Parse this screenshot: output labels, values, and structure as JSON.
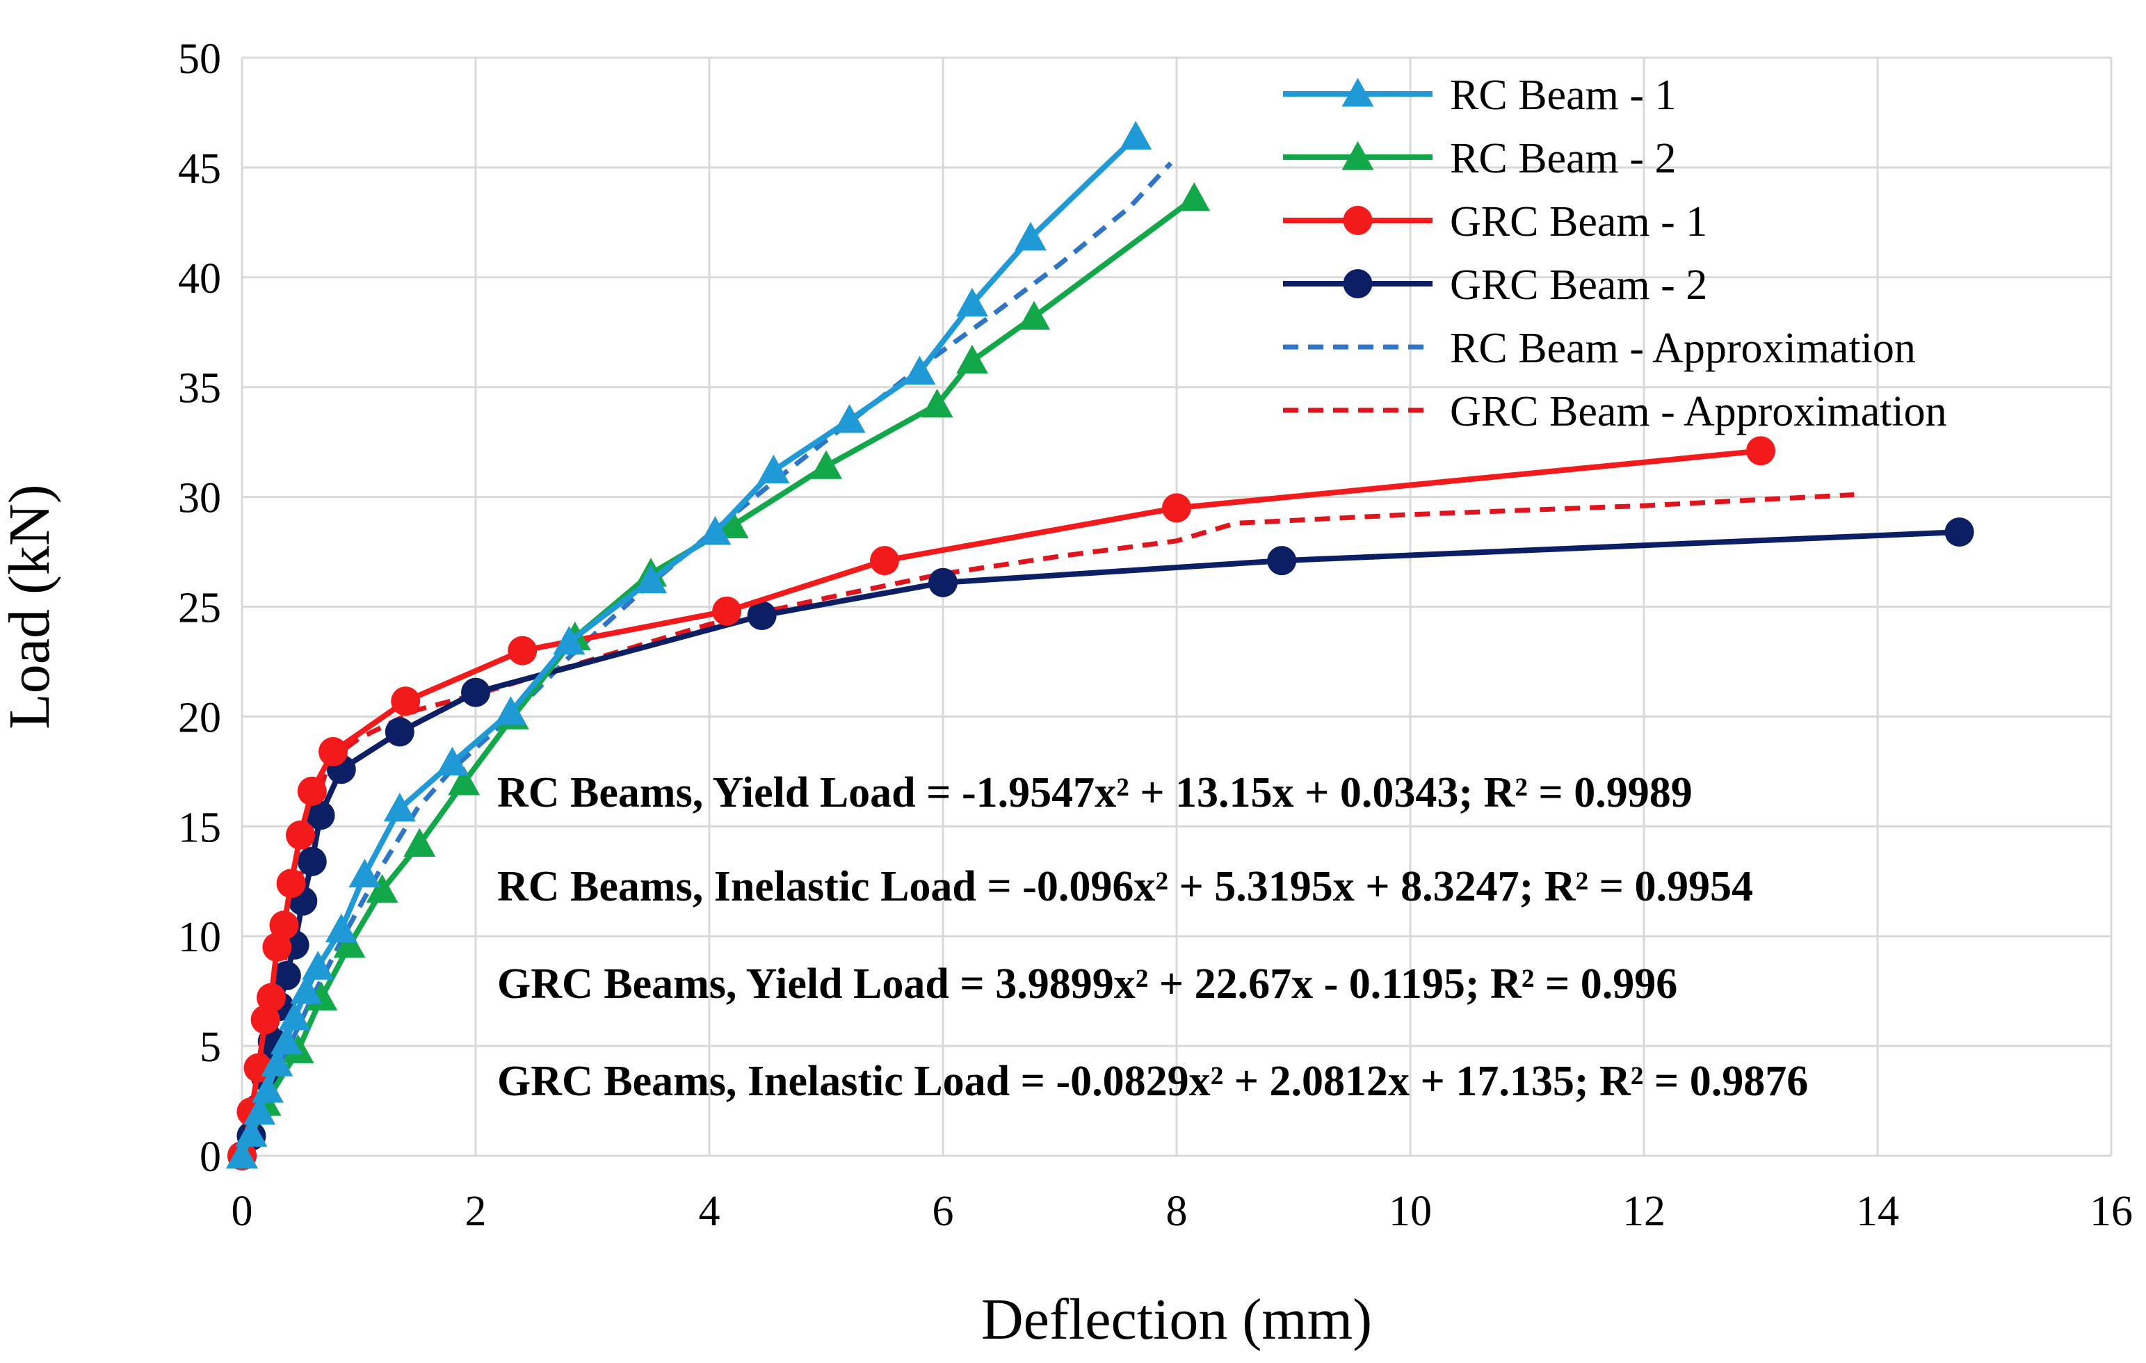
{
  "chart_data": {
    "type": "line",
    "title": "",
    "xlabel": "Deflection (mm)",
    "ylabel": "Load (kN)",
    "xlim": [
      0,
      16
    ],
    "ylim": [
      0,
      50
    ],
    "xticks": [
      0,
      2,
      4,
      6,
      8,
      10,
      12,
      14,
      16
    ],
    "yticks": [
      0,
      5,
      10,
      15,
      20,
      25,
      30,
      35,
      40,
      45,
      50
    ],
    "grid": true,
    "legend_position": "top-right",
    "series": [
      {
        "name": "RC Beam - 1",
        "color": "#1f9ad6",
        "marker": "triangle",
        "style": "solid",
        "x": [
          0,
          0.08,
          0.15,
          0.22,
          0.3,
          0.38,
          0.45,
          0.55,
          0.65,
          0.85,
          1.05,
          1.35,
          1.8,
          2.3,
          2.8,
          3.5,
          4.05,
          4.55,
          5.2,
          5.8,
          6.25,
          6.75,
          7.65
        ],
        "y": [
          0,
          1.0,
          2.0,
          3.0,
          4.2,
          5.2,
          6.3,
          7.5,
          8.6,
          10.3,
          12.8,
          15.8,
          17.9,
          20.2,
          23.4,
          26.2,
          28.4,
          31.2,
          33.5,
          35.7,
          38.8,
          41.8,
          46.4
        ]
      },
      {
        "name": "RC Beam - 2",
        "color": "#12a84a",
        "marker": "triangle",
        "style": "solid",
        "x": [
          0,
          0.2,
          0.48,
          0.68,
          0.92,
          1.2,
          1.52,
          1.9,
          2.32,
          2.85,
          3.5,
          4.2,
          5.0,
          5.95,
          6.25,
          6.78,
          8.15
        ],
        "y": [
          0,
          2.4,
          4.8,
          7.2,
          9.6,
          12.1,
          14.2,
          17.0,
          20.0,
          23.6,
          26.5,
          28.7,
          31.4,
          34.2,
          36.2,
          38.2,
          43.6
        ]
      },
      {
        "name": "GRC Beam - 1",
        "color": "#f21a1a",
        "marker": "circle",
        "style": "solid",
        "x": [
          0,
          0.08,
          0.14,
          0.2,
          0.25,
          0.3,
          0.36,
          0.42,
          0.5,
          0.6,
          0.78,
          1.4,
          2.4,
          4.15,
          5.5,
          8.0,
          13.0
        ],
        "y": [
          0,
          2.0,
          4.0,
          6.2,
          7.2,
          9.5,
          10.5,
          12.4,
          14.6,
          16.6,
          18.4,
          20.7,
          23.0,
          24.8,
          27.1,
          29.5,
          32.1
        ]
      },
      {
        "name": "GRC Beam - 2",
        "color": "#0c1f64",
        "marker": "circle",
        "style": "solid",
        "x": [
          0,
          0.08,
          0.15,
          0.2,
          0.26,
          0.32,
          0.38,
          0.45,
          0.52,
          0.6,
          0.67,
          0.85,
          1.35,
          2.0,
          4.45,
          6.0,
          8.9,
          14.7
        ],
        "y": [
          0,
          0.9,
          2.2,
          3.6,
          5.2,
          6.8,
          8.2,
          9.6,
          11.6,
          13.4,
          15.5,
          17.6,
          19.3,
          21.1,
          24.6,
          26.1,
          27.1,
          28.4
        ]
      },
      {
        "name": "RC Beam - Approximation",
        "color": "#2e75c8",
        "marker": "none",
        "style": "dashed",
        "x": [
          0,
          0.3,
          0.6,
          0.9,
          1.2,
          1.5,
          1.8,
          2.3,
          2.8,
          3.4,
          4.0,
          4.6,
          5.2,
          5.8,
          6.4,
          7.0,
          7.6,
          7.95
        ],
        "y": [
          0,
          3.8,
          7.2,
          10.3,
          13.2,
          15.8,
          17.6,
          20.0,
          22.7,
          25.6,
          28.3,
          30.9,
          33.4,
          35.9,
          38.2,
          40.6,
          43.2,
          45.2
        ]
      },
      {
        "name": "GRC Beam - Approximation",
        "color": "#e0141c",
        "marker": "none",
        "style": "dashed",
        "x": [
          0,
          0.15,
          0.3,
          0.45,
          0.6,
          0.75,
          1.0,
          1.5,
          2.0,
          3.0,
          4.0,
          5.0,
          6.0,
          7.0,
          8.0,
          8.5,
          10.0,
          12.0,
          13.8
        ],
        "y": [
          0,
          3.5,
          7.2,
          11.2,
          15.5,
          18.0,
          19.0,
          20.3,
          21.0,
          22.6,
          24.2,
          25.4,
          26.5,
          27.3,
          28.0,
          28.8,
          29.2,
          29.6,
          30.1
        ]
      }
    ],
    "annotations": [
      "RC Beams, Yield Load = -1.9547x² + 13.15x + 0.0343; R² = 0.9989",
      "RC Beams, Inelastic Load = -0.096x² + 5.3195x + 8.3247; R² = 0.9954",
      "GRC Beams, Yield Load = 3.9899x² + 22.67x - 0.1195; R² = 0.996",
      "GRC Beams, Inelastic Load = -0.0829x² + 2.0812x + 17.135; R² = 0.9876"
    ]
  }
}
